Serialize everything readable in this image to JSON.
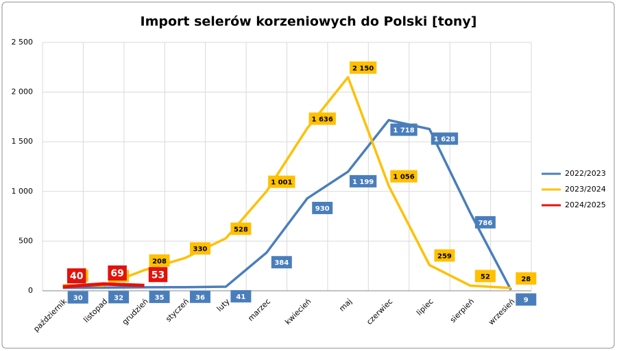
{
  "chart_data": {
    "type": "line",
    "title": "Import selerów korzeniowych do Polski [tony]",
    "categories": [
      "październik",
      "listopad",
      "grudzień",
      "styczeń",
      "luty",
      "marzec",
      "kwiecień",
      "maj",
      "czerwiec",
      "lipiec",
      "sierpień",
      "wrzesień"
    ],
    "series": [
      {
        "name": "2022/2023",
        "color": "#4a7ebb",
        "values": [
          30,
          32,
          35,
          36,
          41,
          384,
          930,
          1199,
          1718,
          1628,
          786,
          9
        ],
        "value_labels": [
          null,
          null,
          null,
          null,
          null,
          null,
          null,
          "1 199",
          "1 718",
          "1 628",
          null,
          null
        ]
      },
      {
        "name": "2023/2024",
        "color": "#ffc000",
        "values": [
          56,
          52,
          208,
          330,
          528,
          1001,
          1636,
          2150,
          1056,
          259,
          52,
          28
        ],
        "value_labels": [
          null,
          null,
          null,
          null,
          null,
          "1 001",
          "1 636",
          "2 150",
          "1 056",
          null,
          null,
          null
        ]
      },
      {
        "name": "2024/2025",
        "color": "#e3120b",
        "values": [
          40,
          69,
          53,
          null,
          null,
          null,
          null,
          null,
          null,
          null,
          null,
          null
        ]
      }
    ],
    "ylim": [
      0,
      2500
    ],
    "yticks": [
      0,
      500,
      {
        "value": 1000,
        "label": "1 000"
      },
      {
        "value": 1500,
        "label": "1 500"
      },
      {
        "value": 2000,
        "label": "2 000"
      },
      {
        "value": 2500,
        "label": "2 500"
      }
    ],
    "grid": true,
    "legend": "right"
  }
}
